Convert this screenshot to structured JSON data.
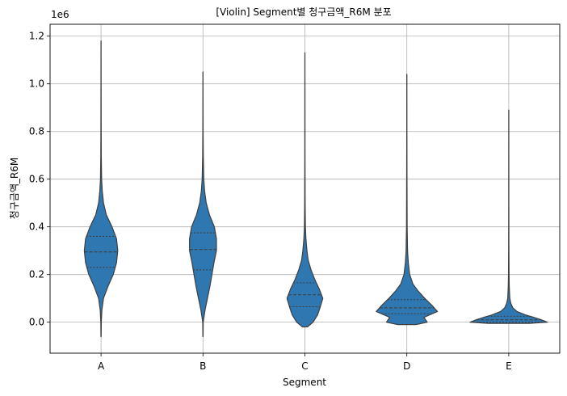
{
  "chart_data": {
    "type": "violin",
    "title": "[Violin] Segment별 청구금액_R6M 분포",
    "xlabel": "Segment",
    "ylabel": "청구금액_R6M",
    "y_offset_label": "1e6",
    "y_scale_factor": 1000000,
    "categories": [
      "A",
      "B",
      "C",
      "D",
      "E"
    ],
    "ylim": [
      -0.13,
      1.25
    ],
    "yticks": [
      0.0,
      0.2,
      0.4,
      0.6,
      0.8,
      1.0,
      1.2
    ],
    "ytick_labels": [
      "0.0",
      "0.2",
      "0.4",
      "0.6",
      "0.8",
      "1.0",
      "1.2"
    ],
    "grid": true,
    "color": "#2e77b0",
    "inner": "quartile",
    "violins": [
      {
        "category": "A",
        "min": -0.06,
        "max": 1.18,
        "quartiles": [
          0.23,
          0.295,
          0.36
        ],
        "profile": [
          [
            -0.06,
            0.003
          ],
          [
            0.0,
            0.006
          ],
          [
            0.05,
            0.02
          ],
          [
            0.1,
            0.06
          ],
          [
            0.15,
            0.17
          ],
          [
            0.2,
            0.3
          ],
          [
            0.25,
            0.38
          ],
          [
            0.3,
            0.41
          ],
          [
            0.35,
            0.38
          ],
          [
            0.4,
            0.27
          ],
          [
            0.45,
            0.13
          ],
          [
            0.5,
            0.06
          ],
          [
            0.55,
            0.03
          ],
          [
            0.6,
            0.014
          ],
          [
            0.7,
            0.006
          ],
          [
            0.8,
            0.004
          ],
          [
            1.0,
            0.002
          ],
          [
            1.18,
            0.001
          ]
        ]
      },
      {
        "category": "B",
        "min": -0.06,
        "max": 1.05,
        "quartiles": [
          0.22,
          0.305,
          0.375
        ],
        "profile": [
          [
            -0.06,
            0.003
          ],
          [
            0.0,
            0.006
          ],
          [
            0.05,
            0.05
          ],
          [
            0.1,
            0.11
          ],
          [
            0.15,
            0.17
          ],
          [
            0.2,
            0.22
          ],
          [
            0.25,
            0.27
          ],
          [
            0.3,
            0.33
          ],
          [
            0.35,
            0.33
          ],
          [
            0.4,
            0.28
          ],
          [
            0.45,
            0.16
          ],
          [
            0.5,
            0.08
          ],
          [
            0.55,
            0.04
          ],
          [
            0.6,
            0.02
          ],
          [
            0.7,
            0.008
          ],
          [
            0.8,
            0.004
          ],
          [
            0.95,
            0.002
          ],
          [
            1.05,
            0.001
          ]
        ]
      },
      {
        "category": "C",
        "min": -0.02,
        "max": 1.13,
        "quartiles": [
          0.065,
          0.115,
          0.165
        ],
        "profile": [
          [
            -0.02,
            0.06
          ],
          [
            0.0,
            0.2
          ],
          [
            0.03,
            0.31
          ],
          [
            0.06,
            0.37
          ],
          [
            0.1,
            0.44
          ],
          [
            0.14,
            0.35
          ],
          [
            0.18,
            0.24
          ],
          [
            0.22,
            0.15
          ],
          [
            0.26,
            0.08
          ],
          [
            0.3,
            0.05
          ],
          [
            0.35,
            0.025
          ],
          [
            0.4,
            0.012
          ],
          [
            0.5,
            0.006
          ],
          [
            0.7,
            0.003
          ],
          [
            0.9,
            0.002
          ],
          [
            1.13,
            0.001
          ]
        ]
      },
      {
        "category": "D",
        "min": -0.01,
        "max": 1.04,
        "quartiles": [
          0.035,
          0.06,
          0.095
        ],
        "profile": [
          [
            -0.01,
            0.22
          ],
          [
            0.0,
            0.5
          ],
          [
            0.02,
            0.42
          ],
          [
            0.045,
            0.75
          ],
          [
            0.07,
            0.62
          ],
          [
            0.1,
            0.44
          ],
          [
            0.13,
            0.28
          ],
          [
            0.16,
            0.15
          ],
          [
            0.2,
            0.07
          ],
          [
            0.25,
            0.035
          ],
          [
            0.3,
            0.018
          ],
          [
            0.4,
            0.008
          ],
          [
            0.6,
            0.004
          ],
          [
            0.8,
            0.002
          ],
          [
            1.04,
            0.001
          ]
        ]
      },
      {
        "category": "E",
        "min": -0.005,
        "max": 0.89,
        "quartiles": [
          0.0,
          0.01,
          0.025
        ],
        "profile": [
          [
            -0.005,
            0.5
          ],
          [
            0.0,
            0.95
          ],
          [
            0.01,
            0.8
          ],
          [
            0.02,
            0.62
          ],
          [
            0.03,
            0.42
          ],
          [
            0.045,
            0.2
          ],
          [
            0.06,
            0.1
          ],
          [
            0.08,
            0.05
          ],
          [
            0.1,
            0.025
          ],
          [
            0.15,
            0.012
          ],
          [
            0.2,
            0.007
          ],
          [
            0.3,
            0.004
          ],
          [
            0.5,
            0.002
          ],
          [
            0.7,
            0.0015
          ],
          [
            0.89,
            0.001
          ]
        ]
      }
    ]
  }
}
